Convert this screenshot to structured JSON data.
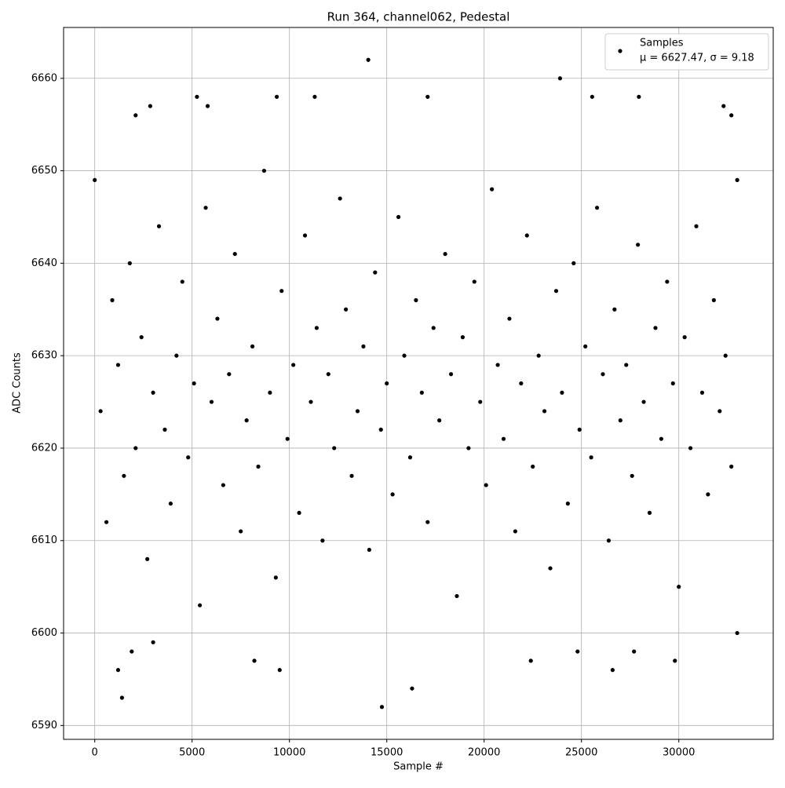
{
  "chart_data": {
    "type": "scatter",
    "title": "Run 364, channel062, Pedestal",
    "x_label": "Sample #",
    "y_label": "ADC Counts",
    "xlim": [
      -1600,
      34850
    ],
    "ylim": [
      6588.5,
      6665.5
    ],
    "xticks": [
      0,
      5000,
      10000,
      15000,
      20000,
      25000,
      30000
    ],
    "yticks": [
      6590,
      6600,
      6610,
      6620,
      6630,
      6640,
      6650,
      6660
    ],
    "grid": true,
    "legend": "upper right",
    "legend_note": "μ = 6627.47, σ = 9.18",
    "series": [
      {
        "name": "Samples",
        "color": "#000000",
        "x": [
          0,
          300,
          600,
          900,
          1200,
          1500,
          1800,
          2100,
          2400,
          2700,
          3000,
          3300,
          3600,
          3900,
          4200,
          4500,
          4800,
          5100,
          5400,
          5700,
          6000,
          6300,
          6600,
          6900,
          7200,
          7500,
          7800,
          8100,
          8400,
          8700,
          9000,
          9300,
          9600,
          9900,
          10200,
          10500,
          10800,
          11100,
          11400,
          11700,
          12000,
          12300,
          12600,
          12900,
          13200,
          13500,
          13800,
          14100,
          14400,
          14700,
          15000,
          15300,
          15600,
          15900,
          16200,
          16500,
          16800,
          17100,
          17400,
          17700,
          18000,
          18300,
          18600,
          18900,
          19200,
          19500,
          19800,
          20100,
          20400,
          20700,
          21000,
          21300,
          21600,
          21900,
          22200,
          22500,
          22800,
          23100,
          23400,
          23700,
          24000,
          24300,
          24600,
          24900,
          25200,
          25500,
          25800,
          26100,
          26400,
          26700,
          27000,
          27300,
          27600,
          27900,
          28200,
          28500,
          28800,
          29100,
          29400,
          29700,
          30000,
          30300,
          30600,
          30900,
          31200,
          31500,
          31800,
          32100,
          32400,
          32700,
          33000,
          14050,
          23900,
          14750,
          1400,
          16300,
          1200,
          9500,
          26600,
          1900,
          24800,
          27700,
          5250,
          9350,
          11300,
          17100,
          25550,
          27950,
          2850,
          5800,
          32300,
          3000,
          8200,
          22400,
          29800,
          33000,
          2100,
          32700
        ],
        "values": [
          6649,
          6624,
          6612,
          6636,
          6629,
          6617,
          6640,
          6620,
          6632,
          6608,
          6626,
          6644,
          6622,
          6614,
          6630,
          6638,
          6619,
          6627,
          6603,
          6646,
          6625,
          6634,
          6616,
          6628,
          6641,
          6611,
          6623,
          6631,
          6618,
          6650,
          6626,
          6606,
          6637,
          6621,
          6629,
          6613,
          6643,
          6625,
          6633,
          6610,
          6628,
          6620,
          6647,
          6635,
          6617,
          6624,
          6631,
          6609,
          6639,
          6622,
          6627,
          6615,
          6645,
          6630,
          6619,
          6636,
          6626,
          6612,
          6633,
          6623,
          6641,
          6628,
          6604,
          6632,
          6620,
          6638,
          6625,
          6616,
          6648,
          6629,
          6621,
          6634,
          6611,
          6627,
          6643,
          6618,
          6630,
          6624,
          6607,
          6637,
          6626,
          6614,
          6640,
          6622,
          6631,
          6619,
          6646,
          6628,
          6610,
          6635,
          6623,
          6629,
          6617,
          6642,
          6625,
          6613,
          6633,
          6621,
          6638,
          6627,
          6605,
          6632,
          6620,
          6644,
          6626,
          6615,
          6636,
          6624,
          6630,
          6618,
          6649,
          6662,
          6660,
          6592,
          6593,
          6594,
          6596,
          6596,
          6596,
          6598,
          6598,
          6598,
          6658,
          6658,
          6658,
          6658,
          6658,
          6658,
          6657,
          6657,
          6657,
          6599,
          6597,
          6597,
          6597,
          6600,
          6656,
          6656
        ]
      }
    ]
  }
}
